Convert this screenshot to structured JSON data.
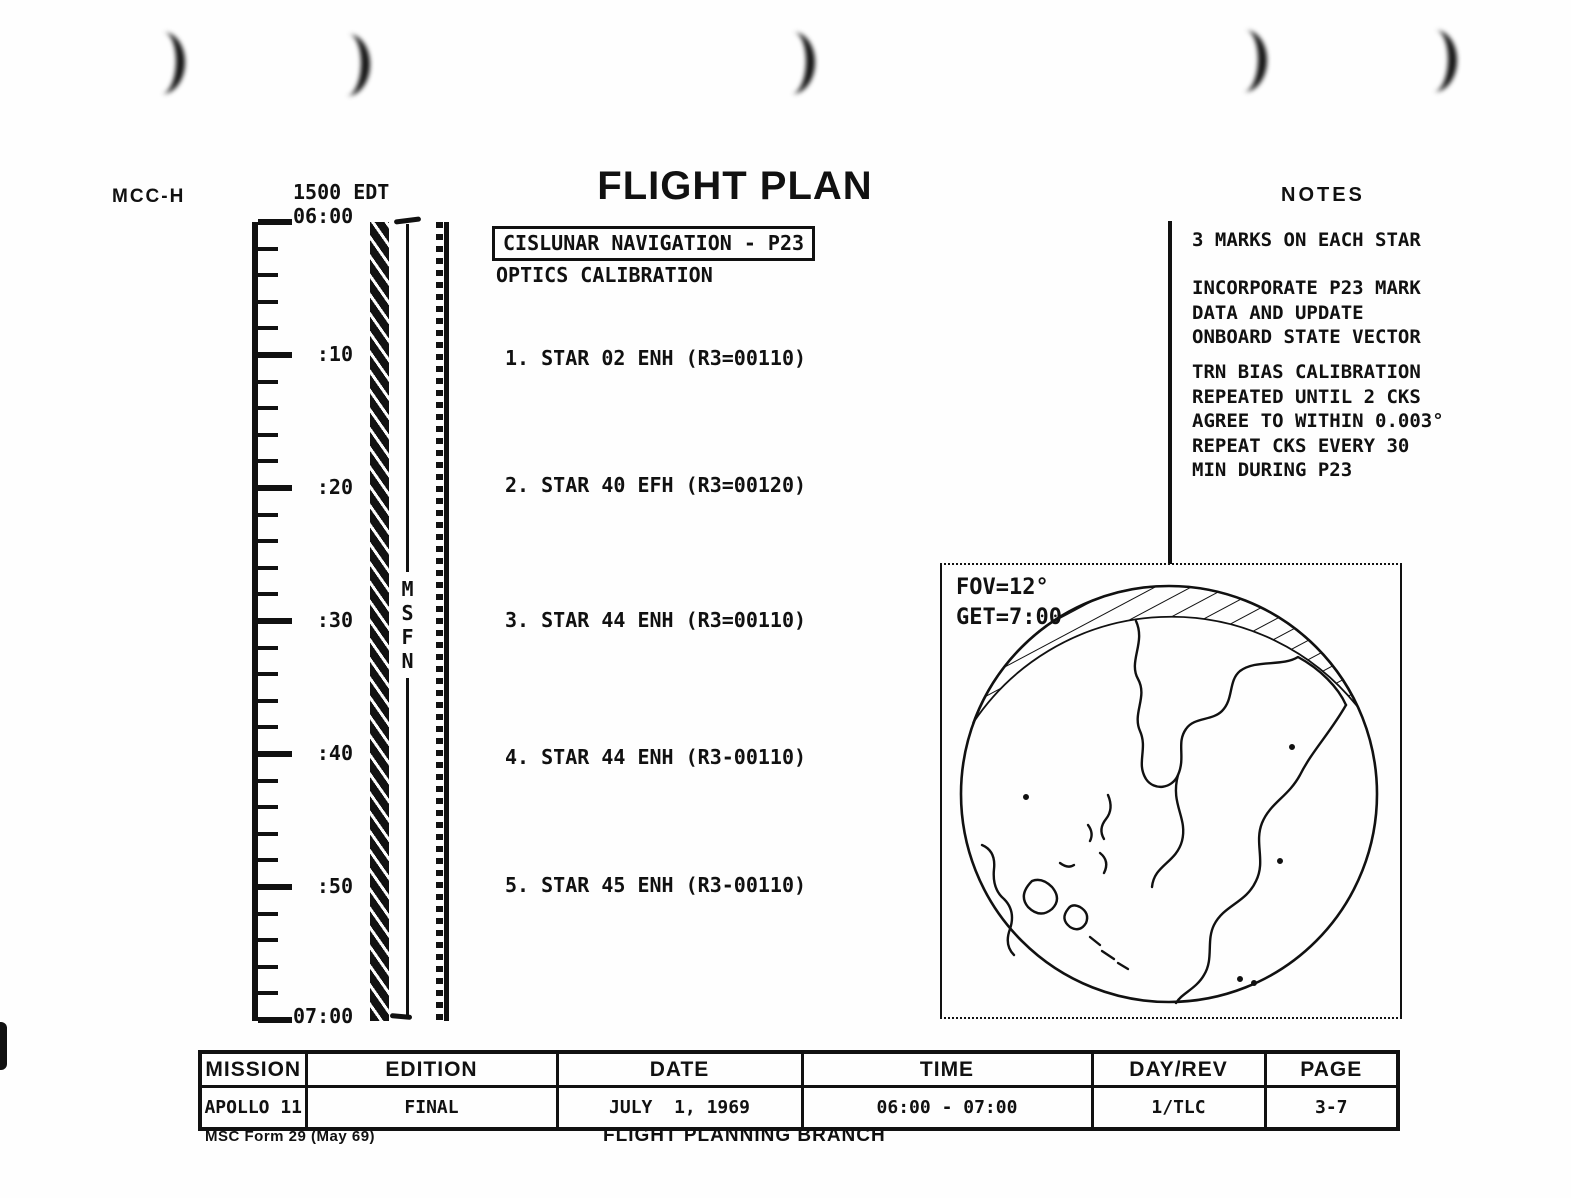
{
  "page": {
    "mcc_label": "MCC-H",
    "title": "FLIGHT PLAN",
    "notes_header": "NOTES"
  },
  "timeline": {
    "edt_label": "1500 EDT",
    "start_label": "06:00",
    "end_label": "07:00",
    "tick_labels": [
      ":10",
      ":20",
      ":30",
      ":40",
      ":50"
    ],
    "coverage_label": "MSFN"
  },
  "activities": {
    "boxed_title": "CISLUNAR NAVIGATION - P23",
    "subtitle": "OPTICS CALIBRATION",
    "steps": [
      "1. STAR 02 ENH (R3=00110)",
      "2. STAR 40 EFH (R3=00120)",
      "3. STAR 44 ENH (R3=00110)",
      "4. STAR 44 ENH (R3-00110)",
      "5. STAR 45 ENH (R3-00110)"
    ]
  },
  "notes": {
    "items": [
      "3 MARKS ON EACH STAR",
      "INCORPORATE P23 MARK\nDATA AND UPDATE\nONBOARD STATE VECTOR",
      "TRN BIAS CALIBRATION\nREPEATED UNTIL 2 CKS\nAGREE TO WITHIN 0.003°\nREPEAT CKS EVERY 30\nMIN DURING P23"
    ]
  },
  "globe": {
    "fov_label": "FOV=12°",
    "get_label": "GET=7:00"
  },
  "footer_table": {
    "headers": [
      "MISSION",
      "EDITION",
      "DATE",
      "TIME",
      "DAY/REV",
      "PAGE"
    ],
    "values": [
      "APOLLO 11",
      "FINAL",
      "JULY  1, 1969",
      "06:00 - 07:00",
      "1/TLC",
      "3-7"
    ]
  },
  "footer": {
    "form_label": "MSC Form 29 (May 69)",
    "branch_label": "FLIGHT PLANNING BRANCH"
  },
  "colors": {
    "ink": "#111111",
    "paper": "#fefefe"
  }
}
